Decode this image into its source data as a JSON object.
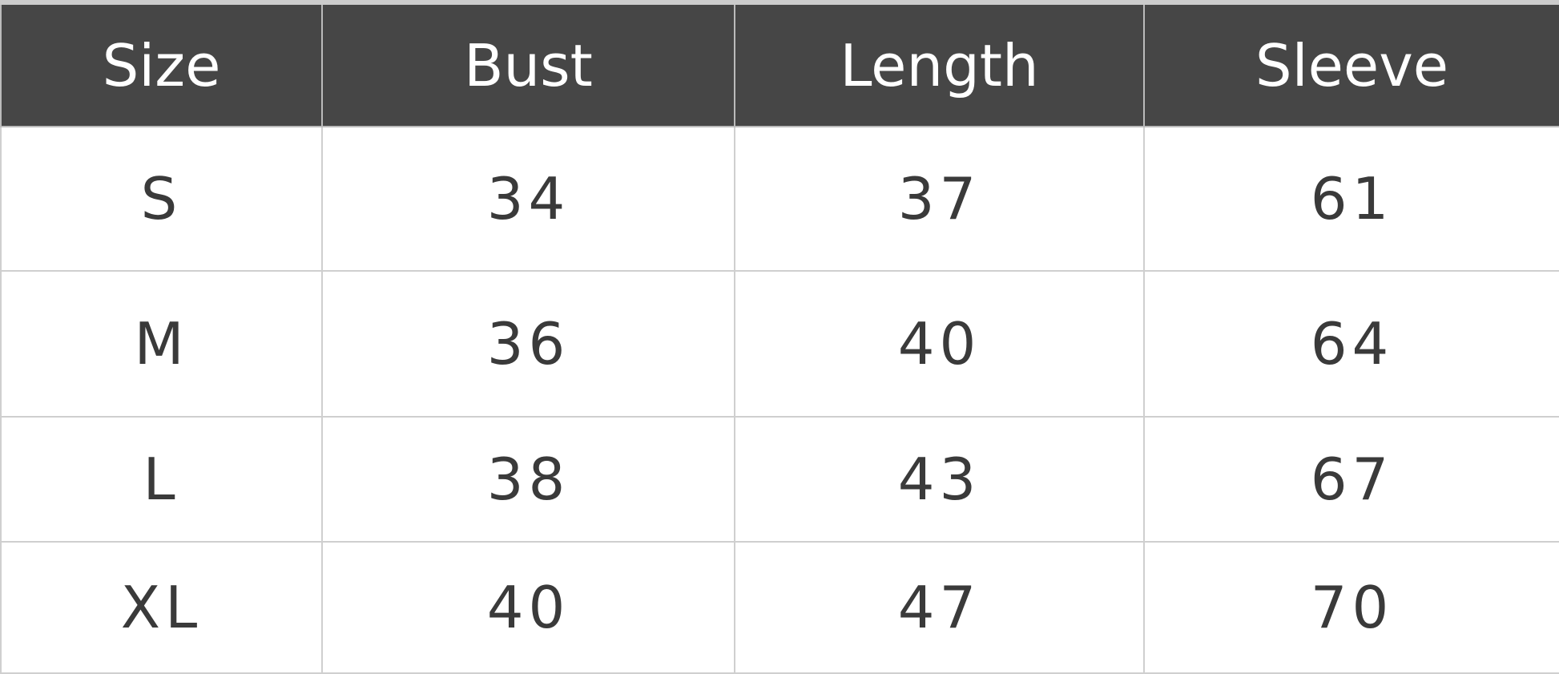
{
  "table": {
    "headers": [
      "Size",
      "Bust",
      "Length",
      "Sleeve"
    ],
    "rows": [
      [
        "S",
        "34",
        "37",
        "61"
      ],
      [
        "M",
        "36",
        "40",
        "64"
      ],
      [
        "L",
        "38",
        "43",
        "67"
      ],
      [
        "XL",
        "40",
        "47",
        "70"
      ]
    ]
  },
  "colors": {
    "header_bg": "#464646",
    "header_text": "#ffffff",
    "cell_text": "#3a3a3a"
  }
}
